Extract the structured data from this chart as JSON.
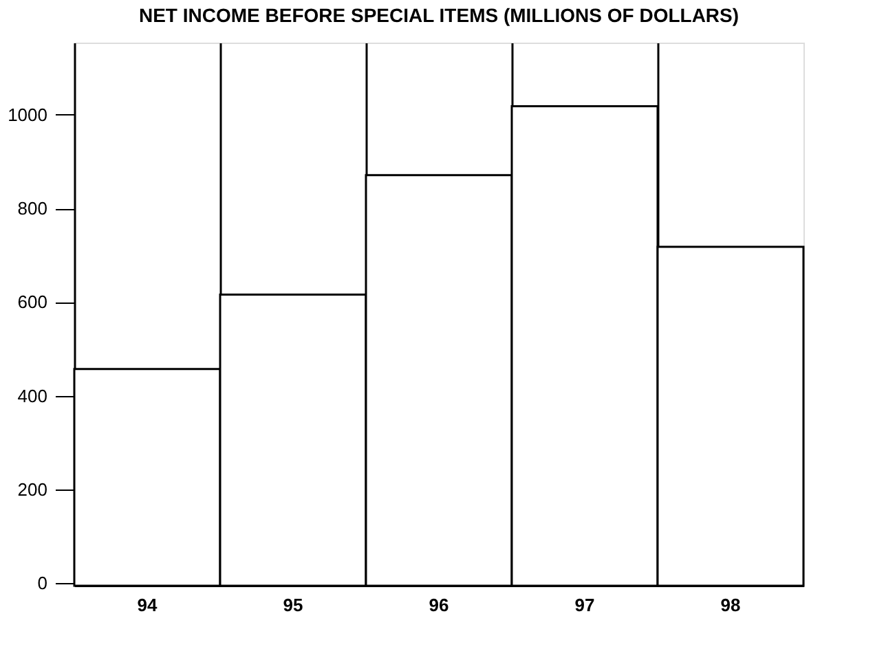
{
  "chart_data": {
    "type": "bar",
    "title": "NET INCOME BEFORE SPECIAL ITEMS (MILLIONS OF DOLLARS)",
    "categories": [
      "94",
      "95",
      "96",
      "97",
      "98"
    ],
    "values": [
      463,
      622,
      877,
      1024,
      724
    ],
    "color": "#ffffff",
    "ylim": [
      0,
      1160
    ],
    "yticks": [
      0,
      200,
      400,
      600,
      800,
      1000
    ],
    "grid": "x"
  }
}
